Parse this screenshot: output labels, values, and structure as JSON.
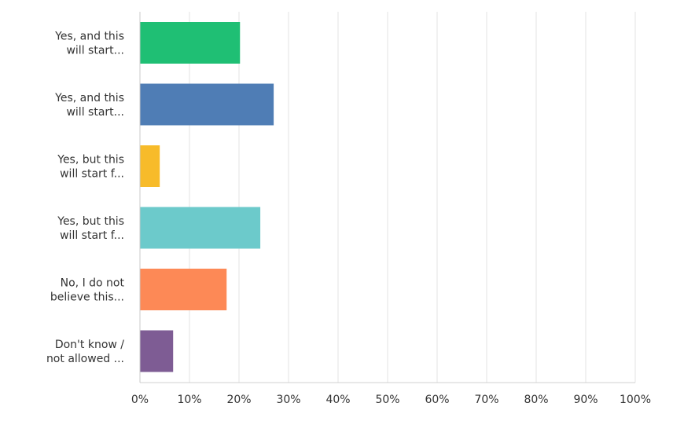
{
  "chart_data": {
    "type": "bar",
    "orientation": "horizontal",
    "categories": [
      [
        "Yes, and this",
        "will start..."
      ],
      [
        "Yes, and this",
        "will start..."
      ],
      [
        "Yes, but this",
        "will start f..."
      ],
      [
        "Yes, but this",
        "will start f..."
      ],
      [
        "No, I do not",
        "believe this..."
      ],
      [
        "Don't know /",
        "not allowed ..."
      ]
    ],
    "values": [
      20.2,
      27.0,
      4.0,
      24.3,
      17.5,
      6.7
    ],
    "colors": [
      "#1fbf74",
      "#4f7db5",
      "#f7bb2a",
      "#6ccacb",
      "#fd8956",
      "#7e5c94"
    ],
    "xlim": [
      0,
      100
    ],
    "ticks": [
      0,
      10,
      20,
      30,
      40,
      50,
      60,
      70,
      80,
      90,
      100
    ],
    "tick_labels": [
      "0%",
      "10%",
      "20%",
      "30%",
      "40%",
      "50%",
      "60%",
      "70%",
      "80%",
      "90%",
      "100%"
    ],
    "grid": true,
    "title": "",
    "xlabel": "",
    "ylabel": ""
  }
}
